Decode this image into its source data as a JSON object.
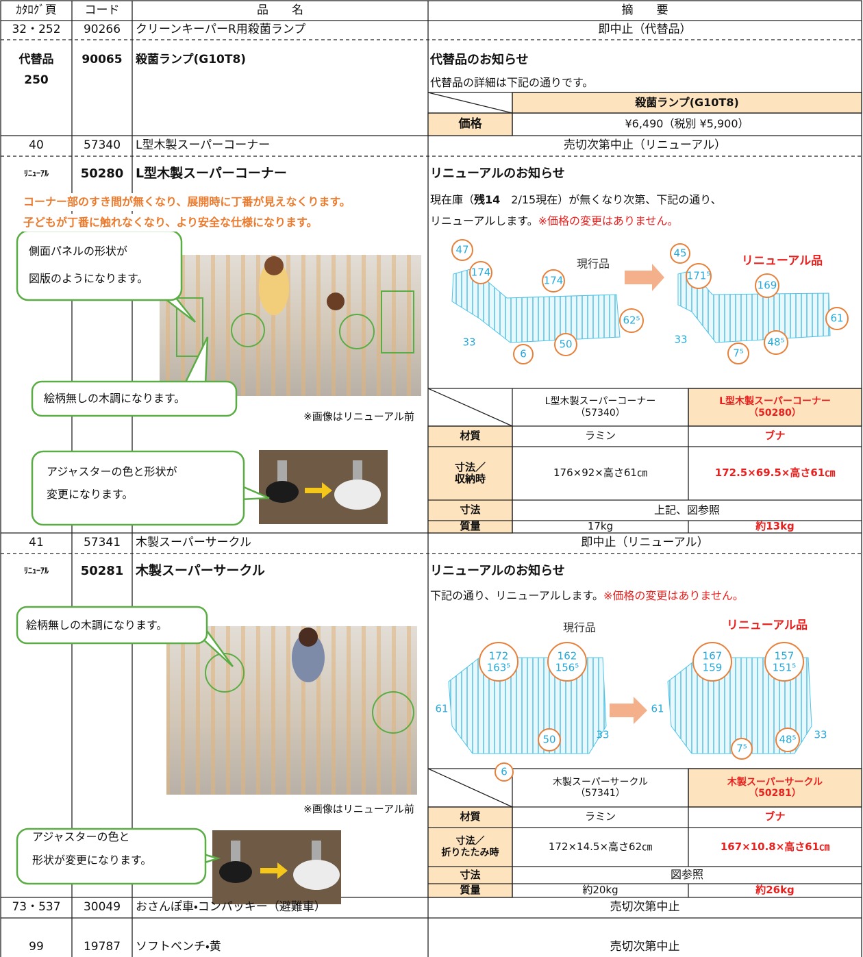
{
  "header": {
    "page": "ｶﾀﾛｸﾞ頁",
    "code": "コード",
    "name": "品　　名",
    "summary": "摘　　要"
  },
  "rows": [
    {
      "page": "32・252",
      "code": "90266",
      "name": "クリーンキーパーR用殺菌ランプ",
      "summary": "即中止（代替品）"
    },
    {
      "page": "40",
      "code": "57340",
      "name": "L型木製スーパーコーナー",
      "summary": "売切次第中止（リニューアル）"
    },
    {
      "page": "41",
      "code": "57341",
      "name": "木製スーパーサークル",
      "summary": "即中止（リニューアル）"
    },
    {
      "page": "73・537",
      "code": "30049",
      "name": "おさんぽ車・コンパッキー（避難車）",
      "summary": "売切次第中止"
    },
    {
      "page": "99",
      "code": "19787",
      "name": "ソフトベンチ・黄",
      "summary": "売切次第中止"
    }
  ],
  "replacement": {
    "label": "代替品",
    "page": "250",
    "code": "90065",
    "name": "殺菌ランプ(G10T8)",
    "notice_title": "代替品のお知らせ",
    "notice_text": "代替品の詳細は下記の通りです。",
    "table": {
      "product": "殺菌ランプ(G10T8)",
      "price_label": "価格",
      "price": "¥6,490（税別 ¥5,900）"
    }
  },
  "renewal_1": {
    "label": "ﾘﾆｭｰｱﾙ",
    "code": "50280",
    "name": "L型木製スーパーコーナー",
    "highlights": [
      "コーナー部のすき間が無くなり、展開時に丁番が見えなくります。",
      "子どもが丁番に触れなくなり、より安全な仕様になります。"
    ],
    "callouts": [
      [
        "側面パネルの形状が",
        "図版のようになります。"
      ],
      [
        "絵柄無しの木調になります。"
      ],
      [
        "アジャスターの色と形状が",
        "変更になります。"
      ]
    ],
    "photo_note": "※画像はリニューアル前",
    "notice_title": "リニューアルのお知らせ",
    "notice": [
      [
        "現在庫（",
        "残14",
        "　2/15現在）が無くなり次第、下記の通り、"
      ],
      [
        "リニューアルします。",
        "※価格の変更はありません。"
      ]
    ],
    "diagram": {
      "current_label": "現行品",
      "renewal_label": "リニューアル品",
      "current_dims": [
        "47",
        "174",
        "174",
        "62⁵",
        "33",
        "6",
        "50"
      ],
      "renewal_dims": [
        "45",
        "171⁵",
        "169",
        "61",
        "33",
        "7⁵",
        "48⁵"
      ]
    },
    "spec": {
      "current": [
        "L型木製スーパーコーナー",
        "（57340）"
      ],
      "renewal": [
        "L型木製スーパーコーナー",
        "（50280）"
      ],
      "rows": [
        {
          "label": [
            "材質"
          ],
          "current": "ラミン",
          "renewal": "ブナ"
        },
        {
          "label": [
            "寸法／",
            "収納時"
          ],
          "current": "176×92×高さ61㎝",
          "renewal": "172.5×69.5×高さ61㎝"
        },
        {
          "label": [
            "寸法"
          ],
          "merged": "上記、図参照"
        },
        {
          "label": [
            "質量"
          ],
          "current": "17kg",
          "renewal": "約13kg"
        }
      ]
    }
  },
  "renewal_2": {
    "label": "ﾘﾆｭｰｱﾙ",
    "code": "50281",
    "name": "木製スーパーサークル",
    "callouts": [
      [
        "絵柄無しの木調になります。"
      ],
      [
        "アジャスターの色と",
        "形状が変更になります。"
      ]
    ],
    "photo_note": "※画像はリニューアル前",
    "notice_title": "リニューアルのお知らせ",
    "notice": [
      [
        "下記の通り、リニューアルします。",
        "※価格の変更はありません。"
      ]
    ],
    "diagram": {
      "current_label": "現行品",
      "renewal_label": "リニューアル品",
      "current_dims": [
        [
          "172",
          "163⁵"
        ],
        [
          "162",
          "156⁵"
        ],
        "61",
        "33",
        "6",
        "50"
      ],
      "renewal_dims": [
        [
          "167",
          "159"
        ],
        [
          "157",
          "151⁵"
        ],
        "61",
        "33",
        "7⁵",
        "48⁵"
      ]
    },
    "spec": {
      "current": [
        "木製スーパーサークル",
        "（57341）"
      ],
      "renewal": [
        "木製スーパーサークル",
        "（50281）"
      ],
      "rows": [
        {
          "label": [
            "材質"
          ],
          "current": "ラミン",
          "renewal": "ブナ"
        },
        {
          "label": [
            "寸法／",
            "折りたたみ時"
          ],
          "current": "172×14.5×高さ62㎝",
          "renewal": "167×10.8×高さ61㎝"
        },
        {
          "label": [
            "寸法"
          ],
          "merged": "図参照"
        },
        {
          "label": [
            "質量"
          ],
          "current": "約20kg",
          "renewal": "約26kg"
        }
      ]
    }
  }
}
